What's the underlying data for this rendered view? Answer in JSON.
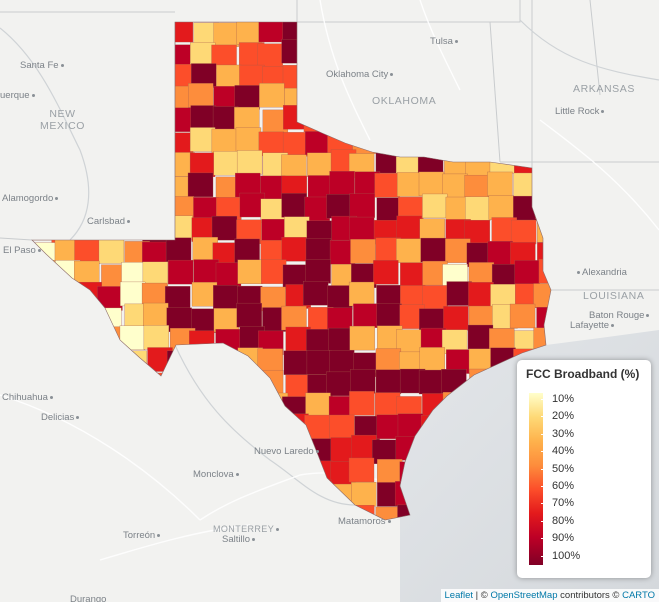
{
  "legend": {
    "title": "FCC Broadband (%)",
    "ticks": [
      "10%",
      "20%",
      "30%",
      "40%",
      "50%",
      "60%",
      "70%",
      "80%",
      "90%",
      "100%"
    ],
    "colors": [
      "#ffffcc",
      "#fed976",
      "#feb24c",
      "#fd8d3c",
      "#fc4e2a",
      "#e31a1c",
      "#bd0026",
      "#800026"
    ]
  },
  "places": {
    "tulsa": "Tulsa",
    "santa_fe": "Santa Fe",
    "albuquerque": "uerque",
    "oklahoma_city": "Oklahoma City",
    "oklahoma": "OKLAHOMA",
    "arkansas": "ARKANSAS",
    "little_rock": "Little Rock",
    "new_mexico_1": "NEW",
    "new_mexico_2": "MEXICO",
    "alamogordo": "Alamogordo",
    "carlsbad": "Carlsbad",
    "el_paso": "El Paso",
    "alexandria": "Alexandria",
    "louisiana": "LOUISIANA",
    "baton_rouge": "Baton Rouge",
    "lafayette": "Lafayette",
    "chihuahua": "Chihuahua",
    "delicias": "Delicias",
    "nuevo_laredo": "Nuevo Laredo",
    "monclova": "Monclova",
    "monterrey": "MONTERREY",
    "saltillo": "Saltillo",
    "torreon": "Torreón",
    "matamoros": "Matamoros",
    "durango": "Durango"
  },
  "attribution": {
    "leaflet": "Leaflet",
    "sep": " | © ",
    "osm": "OpenStreetMap",
    "contrib": " contributors © ",
    "carto": "CARTO"
  }
}
